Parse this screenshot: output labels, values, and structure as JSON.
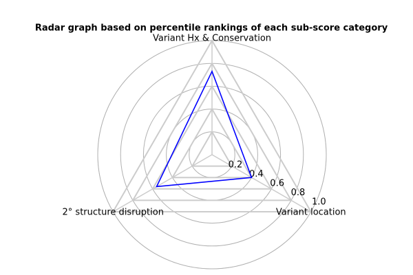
{
  "chart_data": {
    "type": "radar",
    "title": "Radar graph based on percentile rankings of each sub-score category",
    "categories": [
      "Variant Hx & Conservation",
      "Variant location",
      "2° structure disruption"
    ],
    "values": [
      0.73,
      0.4,
      0.56
    ],
    "color": "#0000ff",
    "rlim": [
      0,
      1
    ],
    "rticks": [
      0.2,
      0.4,
      0.6,
      0.8,
      {
        "value": 1,
        "label": "1.0"
      }
    ],
    "grid": true
  }
}
